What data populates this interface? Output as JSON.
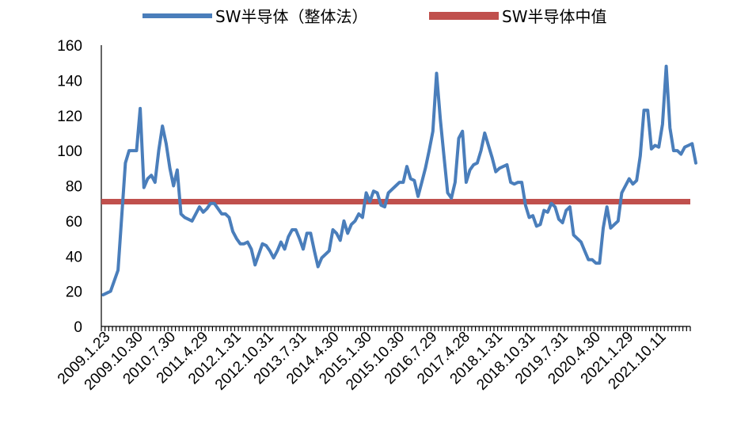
{
  "chart_data": {
    "type": "line",
    "title": "",
    "xlabel": "",
    "ylabel": "",
    "ylim": [
      0,
      160
    ],
    "yticks": [
      0,
      20,
      40,
      60,
      80,
      100,
      120,
      140,
      160
    ],
    "grid": false,
    "legend_position": "top",
    "x_tick_labels": [
      "2009.1.23",
      "2009.10.30",
      "2010.7.30",
      "2011.4.29",
      "2012.1.31",
      "2012.10.31",
      "2013.7.31",
      "2014.4.30",
      "2015.1.30",
      "2015.10.30",
      "2016.7.29",
      "2017.4.28",
      "2018.1.31",
      "2018.10.31",
      "2019.7.31",
      "2020.4.30",
      "2021.1.29",
      "2021.10.11"
    ],
    "point_count": 159,
    "series": [
      {
        "name": "SW半导体（整体法）",
        "color": "#4a7ebb",
        "points": [
          [
            0,
            18
          ],
          [
            2,
            20
          ],
          [
            4,
            32
          ],
          [
            6,
            93
          ],
          [
            7,
            100
          ],
          [
            8,
            100
          ],
          [
            9,
            100
          ],
          [
            10,
            124
          ],
          [
            11,
            79
          ],
          [
            12,
            84
          ],
          [
            13,
            86
          ],
          [
            14,
            82
          ],
          [
            15,
            100
          ],
          [
            16,
            114
          ],
          [
            17,
            104
          ],
          [
            18,
            90
          ],
          [
            19,
            80
          ],
          [
            20,
            89
          ],
          [
            21,
            64
          ],
          [
            22,
            62
          ],
          [
            24,
            60
          ],
          [
            26,
            68
          ],
          [
            27,
            65
          ],
          [
            28,
            67
          ],
          [
            29,
            70
          ],
          [
            30,
            70
          ],
          [
            32,
            64
          ],
          [
            33,
            64
          ],
          [
            34,
            62
          ],
          [
            35,
            54
          ],
          [
            36,
            50
          ],
          [
            37,
            47
          ],
          [
            38,
            47
          ],
          [
            39,
            48
          ],
          [
            40,
            44
          ],
          [
            41,
            35
          ],
          [
            43,
            47
          ],
          [
            44,
            46
          ],
          [
            45,
            43
          ],
          [
            46,
            39
          ],
          [
            47,
            43
          ],
          [
            48,
            48
          ],
          [
            49,
            44
          ],
          [
            50,
            51
          ],
          [
            51,
            55
          ],
          [
            52,
            55
          ],
          [
            53,
            50
          ],
          [
            54,
            44
          ],
          [
            55,
            53
          ],
          [
            56,
            53
          ],
          [
            57,
            43
          ],
          [
            58,
            34
          ],
          [
            59,
            39
          ],
          [
            61,
            43
          ],
          [
            62,
            55
          ],
          [
            63,
            53
          ],
          [
            64,
            49
          ],
          [
            65,
            60
          ],
          [
            66,
            53
          ],
          [
            67,
            58
          ],
          [
            68,
            60
          ],
          [
            69,
            64
          ],
          [
            70,
            62
          ],
          [
            71,
            76
          ],
          [
            72,
            71
          ],
          [
            73,
            77
          ],
          [
            74,
            76
          ],
          [
            75,
            69
          ],
          [
            76,
            68
          ],
          [
            77,
            76
          ],
          [
            78,
            78
          ],
          [
            79,
            80
          ],
          [
            80,
            82
          ],
          [
            81,
            82
          ],
          [
            82,
            91
          ],
          [
            83,
            84
          ],
          [
            84,
            83
          ],
          [
            85,
            74
          ],
          [
            86,
            82
          ],
          [
            87,
            90
          ],
          [
            88,
            100
          ],
          [
            89,
            111
          ],
          [
            90,
            144
          ],
          [
            91,
            118
          ],
          [
            92,
            97
          ],
          [
            93,
            76
          ],
          [
            94,
            73
          ],
          [
            95,
            82
          ],
          [
            96,
            107
          ],
          [
            97,
            111
          ],
          [
            98,
            82
          ],
          [
            99,
            89
          ],
          [
            100,
            92
          ],
          [
            101,
            93
          ],
          [
            102,
            100
          ],
          [
            103,
            110
          ],
          [
            104,
            103
          ],
          [
            105,
            96
          ],
          [
            106,
            88
          ],
          [
            107,
            90
          ],
          [
            109,
            92
          ],
          [
            110,
            82
          ],
          [
            111,
            81
          ],
          [
            112,
            82
          ],
          [
            113,
            82
          ],
          [
            114,
            69
          ],
          [
            115,
            62
          ],
          [
            116,
            63
          ],
          [
            117,
            57
          ],
          [
            118,
            58
          ],
          [
            119,
            66
          ],
          [
            120,
            65
          ],
          [
            121,
            70
          ],
          [
            122,
            68
          ],
          [
            123,
            61
          ],
          [
            124,
            59
          ],
          [
            125,
            66
          ],
          [
            126,
            68
          ],
          [
            127,
            52
          ],
          [
            128,
            50
          ],
          [
            129,
            48
          ],
          [
            130,
            43
          ],
          [
            131,
            38
          ],
          [
            132,
            38
          ],
          [
            133,
            36
          ],
          [
            134,
            36
          ],
          [
            135,
            56
          ],
          [
            136,
            68
          ],
          [
            137,
            56
          ],
          [
            138,
            58
          ],
          [
            139,
            60
          ],
          [
            140,
            76
          ],
          [
            141,
            80
          ],
          [
            142,
            84
          ],
          [
            143,
            81
          ],
          [
            144,
            83
          ],
          [
            145,
            97
          ],
          [
            146,
            123
          ],
          [
            147,
            123
          ],
          [
            148,
            101
          ],
          [
            149,
            103
          ],
          [
            150,
            102
          ],
          [
            151,
            115
          ],
          [
            152,
            148
          ],
          [
            153,
            113
          ],
          [
            154,
            100
          ],
          [
            155,
            100
          ],
          [
            156,
            98
          ],
          [
            157,
            102
          ],
          [
            158,
            103
          ],
          [
            159,
            104
          ],
          [
            160,
            93
          ]
        ]
      },
      {
        "name": "SW半导体中值",
        "color": "#c0504d",
        "constant": 71
      }
    ]
  }
}
